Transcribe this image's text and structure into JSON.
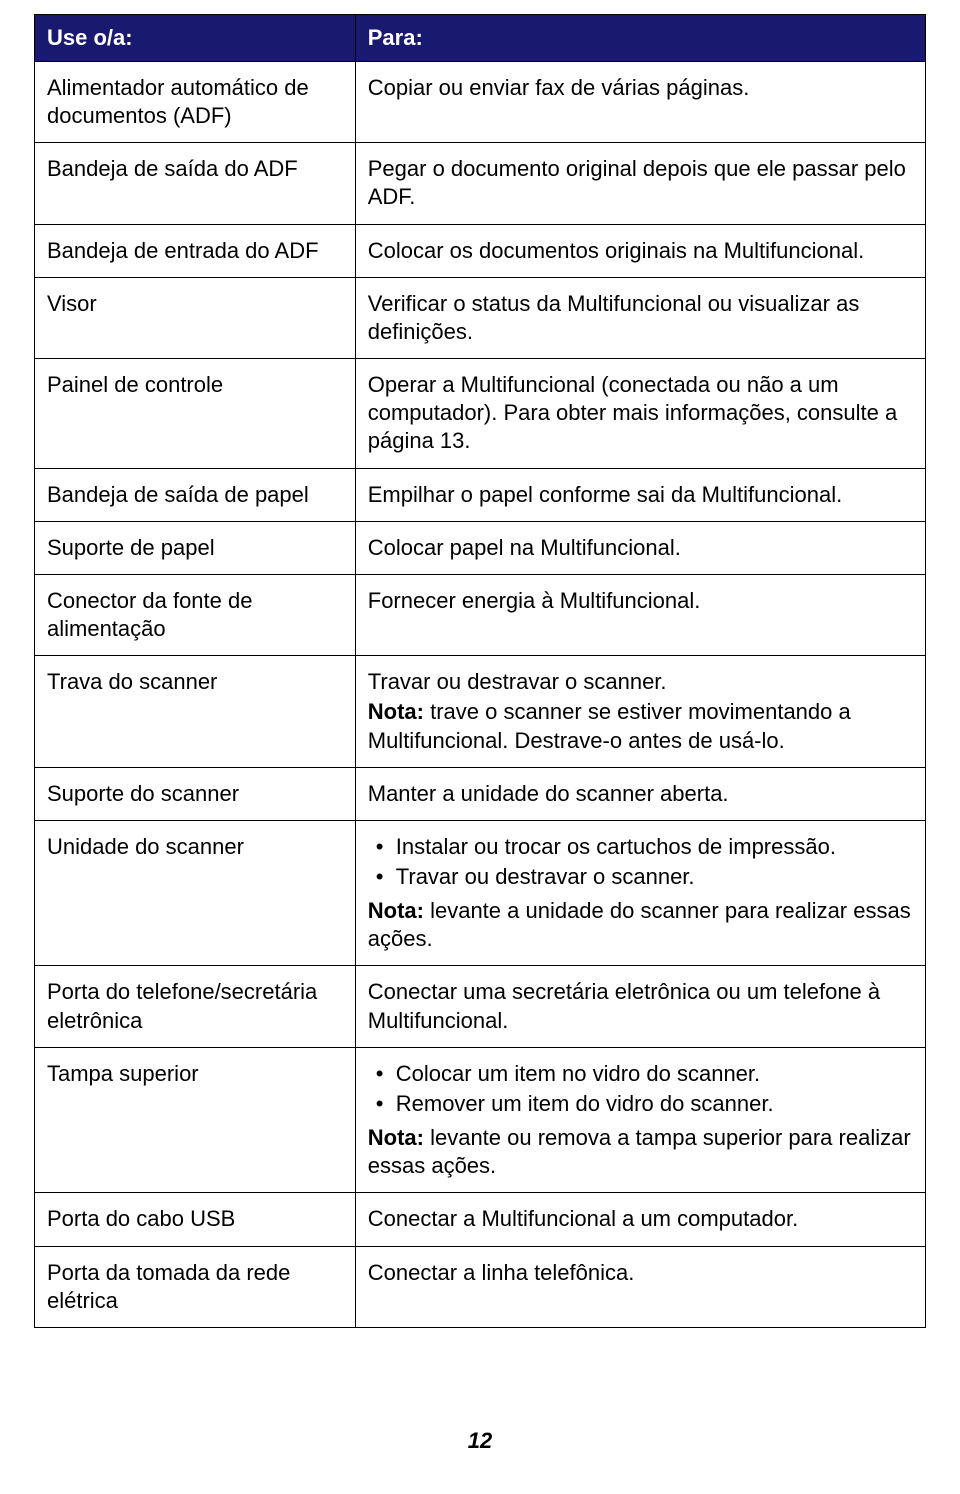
{
  "table": {
    "header": {
      "col1": "Use o/a:",
      "col2": "Para:"
    },
    "header_bg": "#191970",
    "header_color": "#ffffff",
    "border_color": "#000000",
    "col1_width_pct": 36,
    "col2_width_pct": 64,
    "font_size_pt": 16,
    "rows": [
      {
        "left": "Alimentador automático de documentos (ADF)",
        "right_text": "Copiar ou enviar fax de várias páginas."
      },
      {
        "left": "Bandeja de saída do ADF",
        "right_text": "Pegar o documento original depois que ele passar pelo ADF."
      },
      {
        "left": "Bandeja de entrada do ADF",
        "right_text": "Colocar os documentos originais na Multifuncional."
      },
      {
        "left": "Visor",
        "right_text": "Verificar o status da Multifuncional ou visualizar as definições."
      },
      {
        "left": "Painel de controle",
        "right_text": "Operar a Multifuncional (conectada ou não a um computador). Para obter mais informações, consulte a página 13."
      },
      {
        "left": "Bandeja de saída de papel",
        "right_text": "Empilhar o papel conforme sai da Multifuncional."
      },
      {
        "left": "Suporte de papel",
        "right_text": "Colocar papel na Multifuncional."
      },
      {
        "left": "Conector da fonte de alimentação",
        "right_text": "Fornecer energia à Multifuncional."
      },
      {
        "left": "Trava do scanner",
        "right_text": "Travar ou destravar o scanner.",
        "note_label": "Nota:",
        "note_text": " trave o scanner se estiver movimentando a Multifuncional. Destrave-o antes de usá-lo."
      },
      {
        "left": "Suporte do scanner",
        "right_text": "Manter a unidade do scanner aberta."
      },
      {
        "left": "Unidade do scanner",
        "bullets": [
          "Instalar ou trocar os cartuchos de impressão.",
          "Travar ou destravar o scanner."
        ],
        "note_label": "Nota:",
        "note_text": " levante a unidade do scanner para realizar essas ações."
      },
      {
        "left": "Porta do telefone/secretária eletrônica",
        "right_text": "Conectar uma secretária eletrônica ou um telefone à Multifuncional."
      },
      {
        "left": "Tampa superior",
        "bullets": [
          "Colocar um item no vidro do scanner.",
          "Remover um item do vidro do scanner."
        ],
        "note_label": "Nota:",
        "note_text": " levante ou remova a tampa superior para realizar essas ações."
      },
      {
        "left": "Porta do cabo USB",
        "right_text": "Conectar a Multifuncional a um computador."
      },
      {
        "left": "Porta da tomada da rede elétrica",
        "right_text": "Conectar a linha telefônica."
      }
    ]
  },
  "page_number": "12"
}
